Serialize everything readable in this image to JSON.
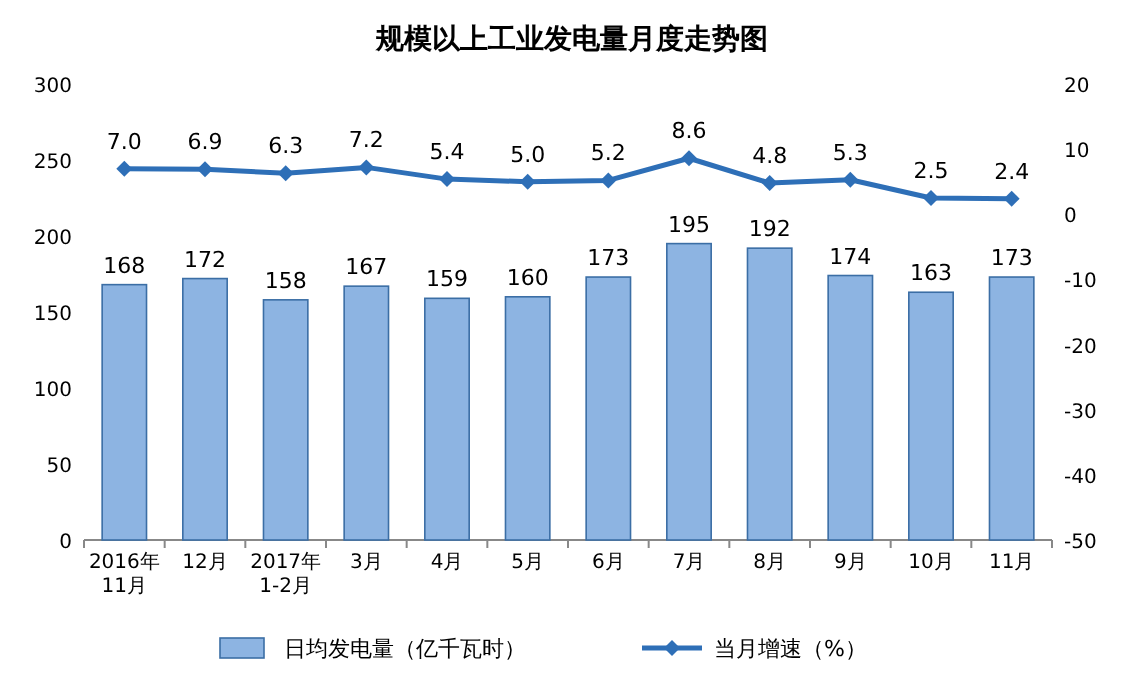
{
  "chart_data": {
    "type": "bar",
    "title": "规模以上工业发电量月度走势图",
    "categories": [
      "2016年\n11月",
      "12月",
      "2017年\n1-2月",
      "3月",
      "4月",
      "5月",
      "6月",
      "7月",
      "8月",
      "9月",
      "10月",
      "11月"
    ],
    "series": [
      {
        "name": "日均发电量（亿千瓦时）",
        "color": "#8db4e2",
        "values": [
          168,
          172,
          158,
          167,
          159,
          160,
          173,
          195,
          192,
          174,
          163,
          173
        ],
        "value_labels": [
          "168",
          "172",
          "158",
          "167",
          "159",
          "160",
          "173",
          "195",
          "192",
          "174",
          "163",
          "173"
        ]
      },
      {
        "name": "当月增速（%）",
        "type": "line",
        "axis": "y2",
        "color": "#2e6fb7",
        "marker": "diamond",
        "values": [
          7.0,
          6.9,
          6.3,
          7.2,
          5.4,
          5.0,
          5.2,
          8.6,
          4.8,
          5.3,
          2.5,
          2.4
        ],
        "value_labels": [
          "7.0",
          "6.9",
          "6.3",
          "7.2",
          "5.4",
          "5.0",
          "5.2",
          "8.6",
          "4.8",
          "5.3",
          "2.5",
          "2.4"
        ]
      }
    ],
    "ylim": [
      0,
      300
    ],
    "yticks": [
      0,
      50,
      100,
      150,
      200,
      250,
      300
    ],
    "y2lim": [
      -50,
      20
    ],
    "y2ticks": [
      -50,
      -40,
      -30,
      -20,
      -10,
      0,
      10,
      20
    ],
    "legend": "bottom"
  }
}
